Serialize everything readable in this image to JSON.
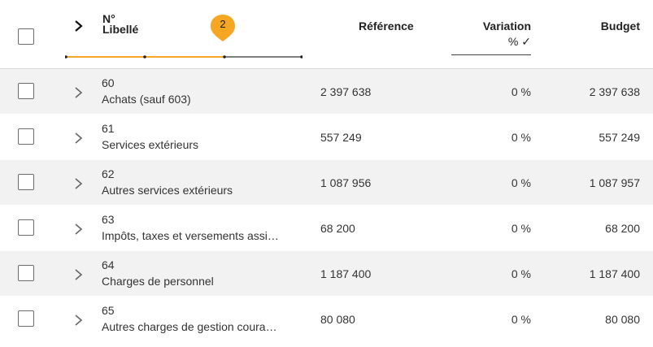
{
  "colors": {
    "accent": "#f5a623",
    "row_shade": "#f2f2f2",
    "header_text": "#222222",
    "text": "#333333"
  },
  "header": {
    "num_label": "N°",
    "libelle_label": "Libellé",
    "level_badge": "2",
    "reference_label": "Référence",
    "variation_label": "Variation",
    "variation_sub": "% ✓",
    "budget_label": "Budget"
  },
  "rows": [
    {
      "num": "60",
      "label": "Achats (sauf 603)",
      "reference": "2 397 638",
      "variation": "0 %",
      "budget": "2 397 638"
    },
    {
      "num": "61",
      "label": "Services extérieurs",
      "reference": "557 249",
      "variation": "0 %",
      "budget": "557 249"
    },
    {
      "num": "62",
      "label": "Autres services extérieurs",
      "reference": "1 087 956",
      "variation": "0 %",
      "budget": "1 087 957"
    },
    {
      "num": "63",
      "label": "Impôts, taxes et versements assi…",
      "reference": "68 200",
      "variation": "0 %",
      "budget": "68 200"
    },
    {
      "num": "64",
      "label": "Charges de personnel",
      "reference": "1 187 400",
      "variation": "0 %",
      "budget": "1 187 400"
    },
    {
      "num": "65",
      "label": "Autres charges de gestion coura…",
      "reference": "80 080",
      "variation": "0 %",
      "budget": "80 080"
    }
  ]
}
